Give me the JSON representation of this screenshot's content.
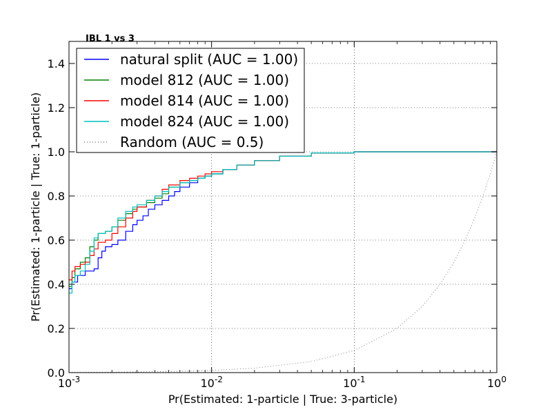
{
  "chart_data": {
    "type": "line",
    "title": "IBL 1 vs 3",
    "xlabel": "Pr(Estimated: 1-particle | True: 3-particle)",
    "ylabel": "Pr(Estimated: 1-particle | True: 1-particle)",
    "xscale": "log",
    "xlim": [
      0.001,
      1.0
    ],
    "ylim": [
      0.0,
      1.5
    ],
    "grid": true,
    "legend_position": "top-left",
    "x_ticks": [
      {
        "value": 0.001,
        "base": "10",
        "exponent": "-3"
      },
      {
        "value": 0.01,
        "base": "10",
        "exponent": "-2"
      },
      {
        "value": 0.1,
        "base": "10",
        "exponent": "-1"
      },
      {
        "value": 1.0,
        "base": "10",
        "exponent": "0"
      }
    ],
    "y_ticks": [
      {
        "value": 0.0,
        "label": "0.0"
      },
      {
        "value": 0.2,
        "label": "0.2"
      },
      {
        "value": 0.4,
        "label": "0.4"
      },
      {
        "value": 0.6,
        "label": "0.6"
      },
      {
        "value": 0.8,
        "label": "0.8"
      },
      {
        "value": 1.0,
        "label": "1.0"
      },
      {
        "value": 1.2,
        "label": "1.2"
      },
      {
        "value": 1.4,
        "label": "1.4"
      }
    ],
    "series": [
      {
        "name": "natural split (AUC = 1.00)",
        "color": "#0000ff",
        "style": "step",
        "x": [
          0.001,
          0.00105,
          0.00115,
          0.0013,
          0.0015,
          0.0016,
          0.0017,
          0.0018,
          0.002,
          0.0022,
          0.0025,
          0.0028,
          0.003,
          0.0033,
          0.0036,
          0.004,
          0.0045,
          0.005,
          0.0055,
          0.006,
          0.007,
          0.008,
          0.009,
          0.01,
          0.012,
          0.015,
          0.02,
          0.03,
          0.05,
          0.1,
          1.0
        ],
        "y": [
          0.38,
          0.41,
          0.44,
          0.46,
          0.47,
          0.52,
          0.55,
          0.57,
          0.58,
          0.6,
          0.64,
          0.67,
          0.69,
          0.71,
          0.74,
          0.76,
          0.78,
          0.8,
          0.82,
          0.84,
          0.86,
          0.88,
          0.89,
          0.9,
          0.92,
          0.94,
          0.96,
          0.98,
          0.995,
          1.0,
          1.0
        ]
      },
      {
        "name": "model 812 (AUC = 1.00)",
        "color": "#008000",
        "style": "step",
        "x": [
          0.001,
          0.00105,
          0.0011,
          0.0012,
          0.0013,
          0.0014,
          0.0015,
          0.0016,
          0.0018,
          0.002,
          0.0022,
          0.0025,
          0.0028,
          0.003,
          0.0035,
          0.004,
          0.0045,
          0.005,
          0.006,
          0.007,
          0.008,
          0.009,
          0.01,
          0.012,
          0.015,
          0.02,
          0.03,
          0.05,
          0.1,
          1.0
        ],
        "y": [
          0.39,
          0.43,
          0.47,
          0.5,
          0.52,
          0.57,
          0.6,
          0.63,
          0.64,
          0.66,
          0.69,
          0.72,
          0.74,
          0.75,
          0.77,
          0.79,
          0.81,
          0.84,
          0.86,
          0.87,
          0.88,
          0.89,
          0.9,
          0.92,
          0.94,
          0.96,
          0.98,
          0.995,
          1.0,
          1.0
        ]
      },
      {
        "name": "model 814 (AUC = 1.00)",
        "color": "#ff0000",
        "style": "step",
        "x": [
          0.001,
          0.00105,
          0.0011,
          0.0012,
          0.0013,
          0.0014,
          0.0015,
          0.0016,
          0.0018,
          0.002,
          0.0022,
          0.0025,
          0.0028,
          0.003,
          0.0035,
          0.004,
          0.0045,
          0.005,
          0.006,
          0.007,
          0.008,
          0.009,
          0.01,
          0.012,
          0.015,
          0.02,
          0.03,
          0.05,
          0.1,
          1.0
        ],
        "y": [
          0.42,
          0.46,
          0.48,
          0.49,
          0.5,
          0.53,
          0.56,
          0.59,
          0.6,
          0.63,
          0.66,
          0.7,
          0.73,
          0.75,
          0.78,
          0.8,
          0.83,
          0.85,
          0.87,
          0.88,
          0.89,
          0.9,
          0.91,
          0.92,
          0.94,
          0.96,
          0.98,
          0.995,
          1.0,
          1.0
        ]
      },
      {
        "name": "model 824 (AUC = 1.00)",
        "color": "#00bfbf",
        "style": "step",
        "x": [
          0.001,
          0.00105,
          0.0011,
          0.0012,
          0.0013,
          0.0014,
          0.0015,
          0.0016,
          0.0018,
          0.002,
          0.0022,
          0.0025,
          0.0028,
          0.003,
          0.0035,
          0.004,
          0.0045,
          0.005,
          0.006,
          0.007,
          0.008,
          0.009,
          0.01,
          0.012,
          0.015,
          0.02,
          0.03,
          0.05,
          0.1,
          1.0
        ],
        "y": [
          0.36,
          0.41,
          0.44,
          0.46,
          0.49,
          0.55,
          0.61,
          0.63,
          0.64,
          0.66,
          0.7,
          0.73,
          0.75,
          0.76,
          0.78,
          0.8,
          0.82,
          0.84,
          0.86,
          0.87,
          0.88,
          0.89,
          0.9,
          0.92,
          0.94,
          0.96,
          0.98,
          0.995,
          1.0,
          1.0
        ]
      },
      {
        "name": "Random (AUC = 0.5)",
        "color": "#808080",
        "style": "dotted",
        "x": [
          0.001,
          0.002,
          0.005,
          0.01,
          0.02,
          0.05,
          0.1,
          0.2,
          0.3,
          0.4,
          0.5,
          0.6,
          0.7,
          0.8,
          0.9,
          1.0
        ],
        "y": [
          0.001,
          0.002,
          0.005,
          0.01,
          0.02,
          0.05,
          0.1,
          0.2,
          0.3,
          0.4,
          0.5,
          0.6,
          0.7,
          0.8,
          0.9,
          1.0
        ]
      }
    ]
  }
}
